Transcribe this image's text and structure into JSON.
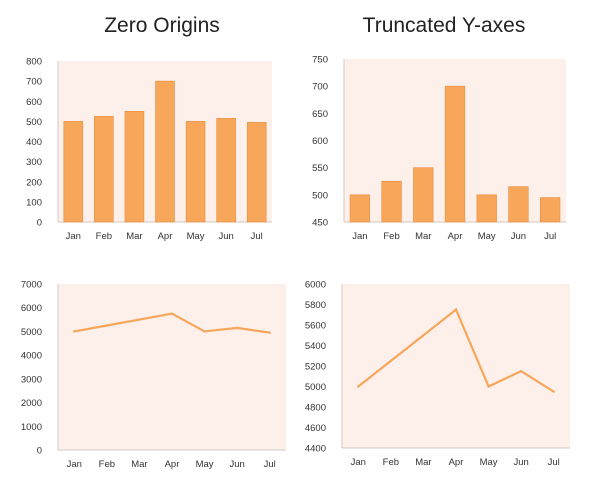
{
  "titles": {
    "left": "Zero Origins",
    "right": "Truncated Y-axes"
  },
  "colors": {
    "bar": "#f8a65a",
    "bar_stroke": "#e88d3c",
    "line": "#f8a65a",
    "plot_bg": "#fdf0ea",
    "axis": "#d3c8c2",
    "text": "#333333"
  },
  "chart_data": [
    {
      "type": "bar",
      "categories": [
        "Jan",
        "Feb",
        "Mar",
        "Apr",
        "May",
        "Jun",
        "Jul"
      ],
      "values": [
        500,
        525,
        550,
        700,
        500,
        515,
        495
      ],
      "ylim": [
        0,
        800
      ],
      "yticks": [
        0,
        100,
        200,
        300,
        400,
        500,
        600,
        700,
        800
      ],
      "title": "",
      "xlabel": "",
      "ylabel": ""
    },
    {
      "type": "bar",
      "categories": [
        "Jan",
        "Feb",
        "Mar",
        "Apr",
        "May",
        "Jun",
        "Jul"
      ],
      "values": [
        500,
        525,
        550,
        700,
        500,
        515,
        495
      ],
      "ylim": [
        450,
        750
      ],
      "yticks": [
        450,
        500,
        550,
        600,
        650,
        700,
        750
      ],
      "title": "",
      "xlabel": "",
      "ylabel": ""
    },
    {
      "type": "line",
      "categories": [
        "Jan",
        "Feb",
        "Mar",
        "Apr",
        "May",
        "Jun",
        "Jul"
      ],
      "values": [
        5000,
        5250,
        5500,
        5750,
        5000,
        5150,
        4950
      ],
      "ylim": [
        0,
        7000
      ],
      "yticks": [
        0,
        1000,
        2000,
        3000,
        4000,
        5000,
        6000,
        7000
      ],
      "title": "",
      "xlabel": "",
      "ylabel": ""
    },
    {
      "type": "line",
      "categories": [
        "Jan",
        "Feb",
        "Mar",
        "Apr",
        "May",
        "Jun",
        "Jul"
      ],
      "values": [
        5000,
        5250,
        5500,
        5750,
        5000,
        5150,
        4950
      ],
      "ylim": [
        4400,
        6000
      ],
      "yticks": [
        4400,
        4600,
        4800,
        5000,
        5200,
        5400,
        5600,
        5800,
        6000
      ],
      "title": "",
      "xlabel": "",
      "ylabel": ""
    }
  ]
}
